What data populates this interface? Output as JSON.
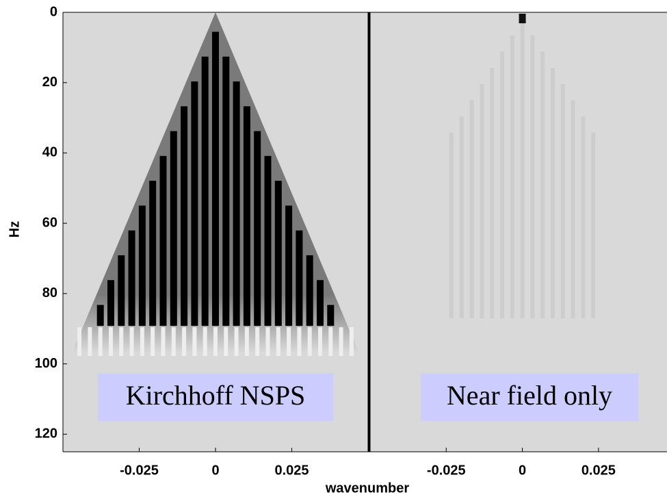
{
  "chart_data": [
    {
      "type": "heatmap",
      "label": "Kirchhoff NSPS",
      "ylabel": "Hz",
      "xlabel": "wavenumber",
      "xlim": [
        -0.05,
        0.05
      ],
      "xticks": [
        -0.025,
        0,
        0.025
      ],
      "ylim": [
        0,
        125
      ],
      "yticks": [
        0,
        20,
        40,
        60,
        80,
        100,
        120
      ]
    },
    {
      "type": "heatmap",
      "label": "Near field only",
      "xlim": [
        -0.05,
        0.0475
      ],
      "xticks": [
        -0.025,
        0,
        0.025
      ],
      "ylim": [
        0,
        125
      ]
    }
  ]
}
